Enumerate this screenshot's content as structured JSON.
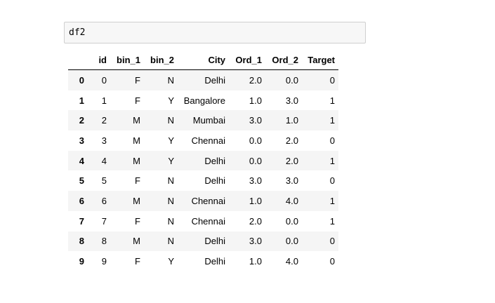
{
  "cell": {
    "input": "df2"
  },
  "table": {
    "columns": [
      "",
      "id",
      "bin_1",
      "bin_2",
      "City",
      "Ord_1",
      "Ord_2",
      "Target"
    ],
    "rows": [
      [
        "0",
        "0",
        "F",
        "N",
        "Delhi",
        "2.0",
        "0.0",
        "0"
      ],
      [
        "1",
        "1",
        "F",
        "Y",
        "Bangalore",
        "1.0",
        "3.0",
        "1"
      ],
      [
        "2",
        "2",
        "M",
        "N",
        "Mumbai",
        "3.0",
        "1.0",
        "1"
      ],
      [
        "3",
        "3",
        "M",
        "Y",
        "Chennai",
        "0.0",
        "2.0",
        "0"
      ],
      [
        "4",
        "4",
        "M",
        "Y",
        "Delhi",
        "0.0",
        "2.0",
        "1"
      ],
      [
        "5",
        "5",
        "F",
        "N",
        "Delhi",
        "3.0",
        "3.0",
        "0"
      ],
      [
        "6",
        "6",
        "M",
        "N",
        "Chennai",
        "1.0",
        "4.0",
        "1"
      ],
      [
        "7",
        "7",
        "F",
        "N",
        "Chennai",
        "2.0",
        "0.0",
        "1"
      ],
      [
        "8",
        "8",
        "M",
        "N",
        "Delhi",
        "3.0",
        "0.0",
        "0"
      ],
      [
        "9",
        "9",
        "F",
        "Y",
        "Delhi",
        "1.0",
        "4.0",
        "0"
      ]
    ]
  }
}
